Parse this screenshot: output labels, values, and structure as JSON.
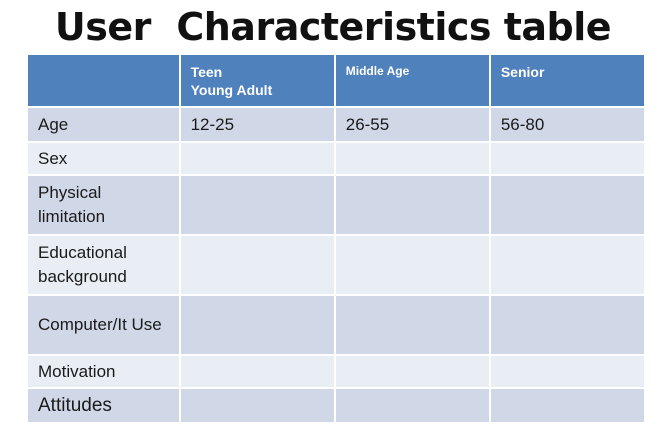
{
  "title": "User  Characteristics table",
  "table": {
    "headers": [
      "",
      "Teen\nYoung Adult",
      "Middle Age",
      "Senior"
    ],
    "rows": [
      {
        "label": "Age",
        "values": [
          "12-25",
          "26-55",
          "56-80"
        ]
      },
      {
        "label": "Sex",
        "values": [
          "",
          "",
          ""
        ]
      },
      {
        "label": "Physical limitation",
        "values": [
          "",
          "",
          ""
        ]
      },
      {
        "label": "Educational background",
        "values": [
          "",
          "",
          ""
        ]
      },
      {
        "label": "Computer/It Use",
        "values": [
          "",
          "",
          ""
        ]
      },
      {
        "label": "Motivation",
        "values": [
          "",
          "",
          ""
        ]
      },
      {
        "label": "Attitudes",
        "values": [
          "",
          "",
          ""
        ]
      }
    ]
  },
  "colors": {
    "header_bg": "#4f81bd",
    "row_dark": "#d0d8e8",
    "row_light": "#e9edf4"
  }
}
